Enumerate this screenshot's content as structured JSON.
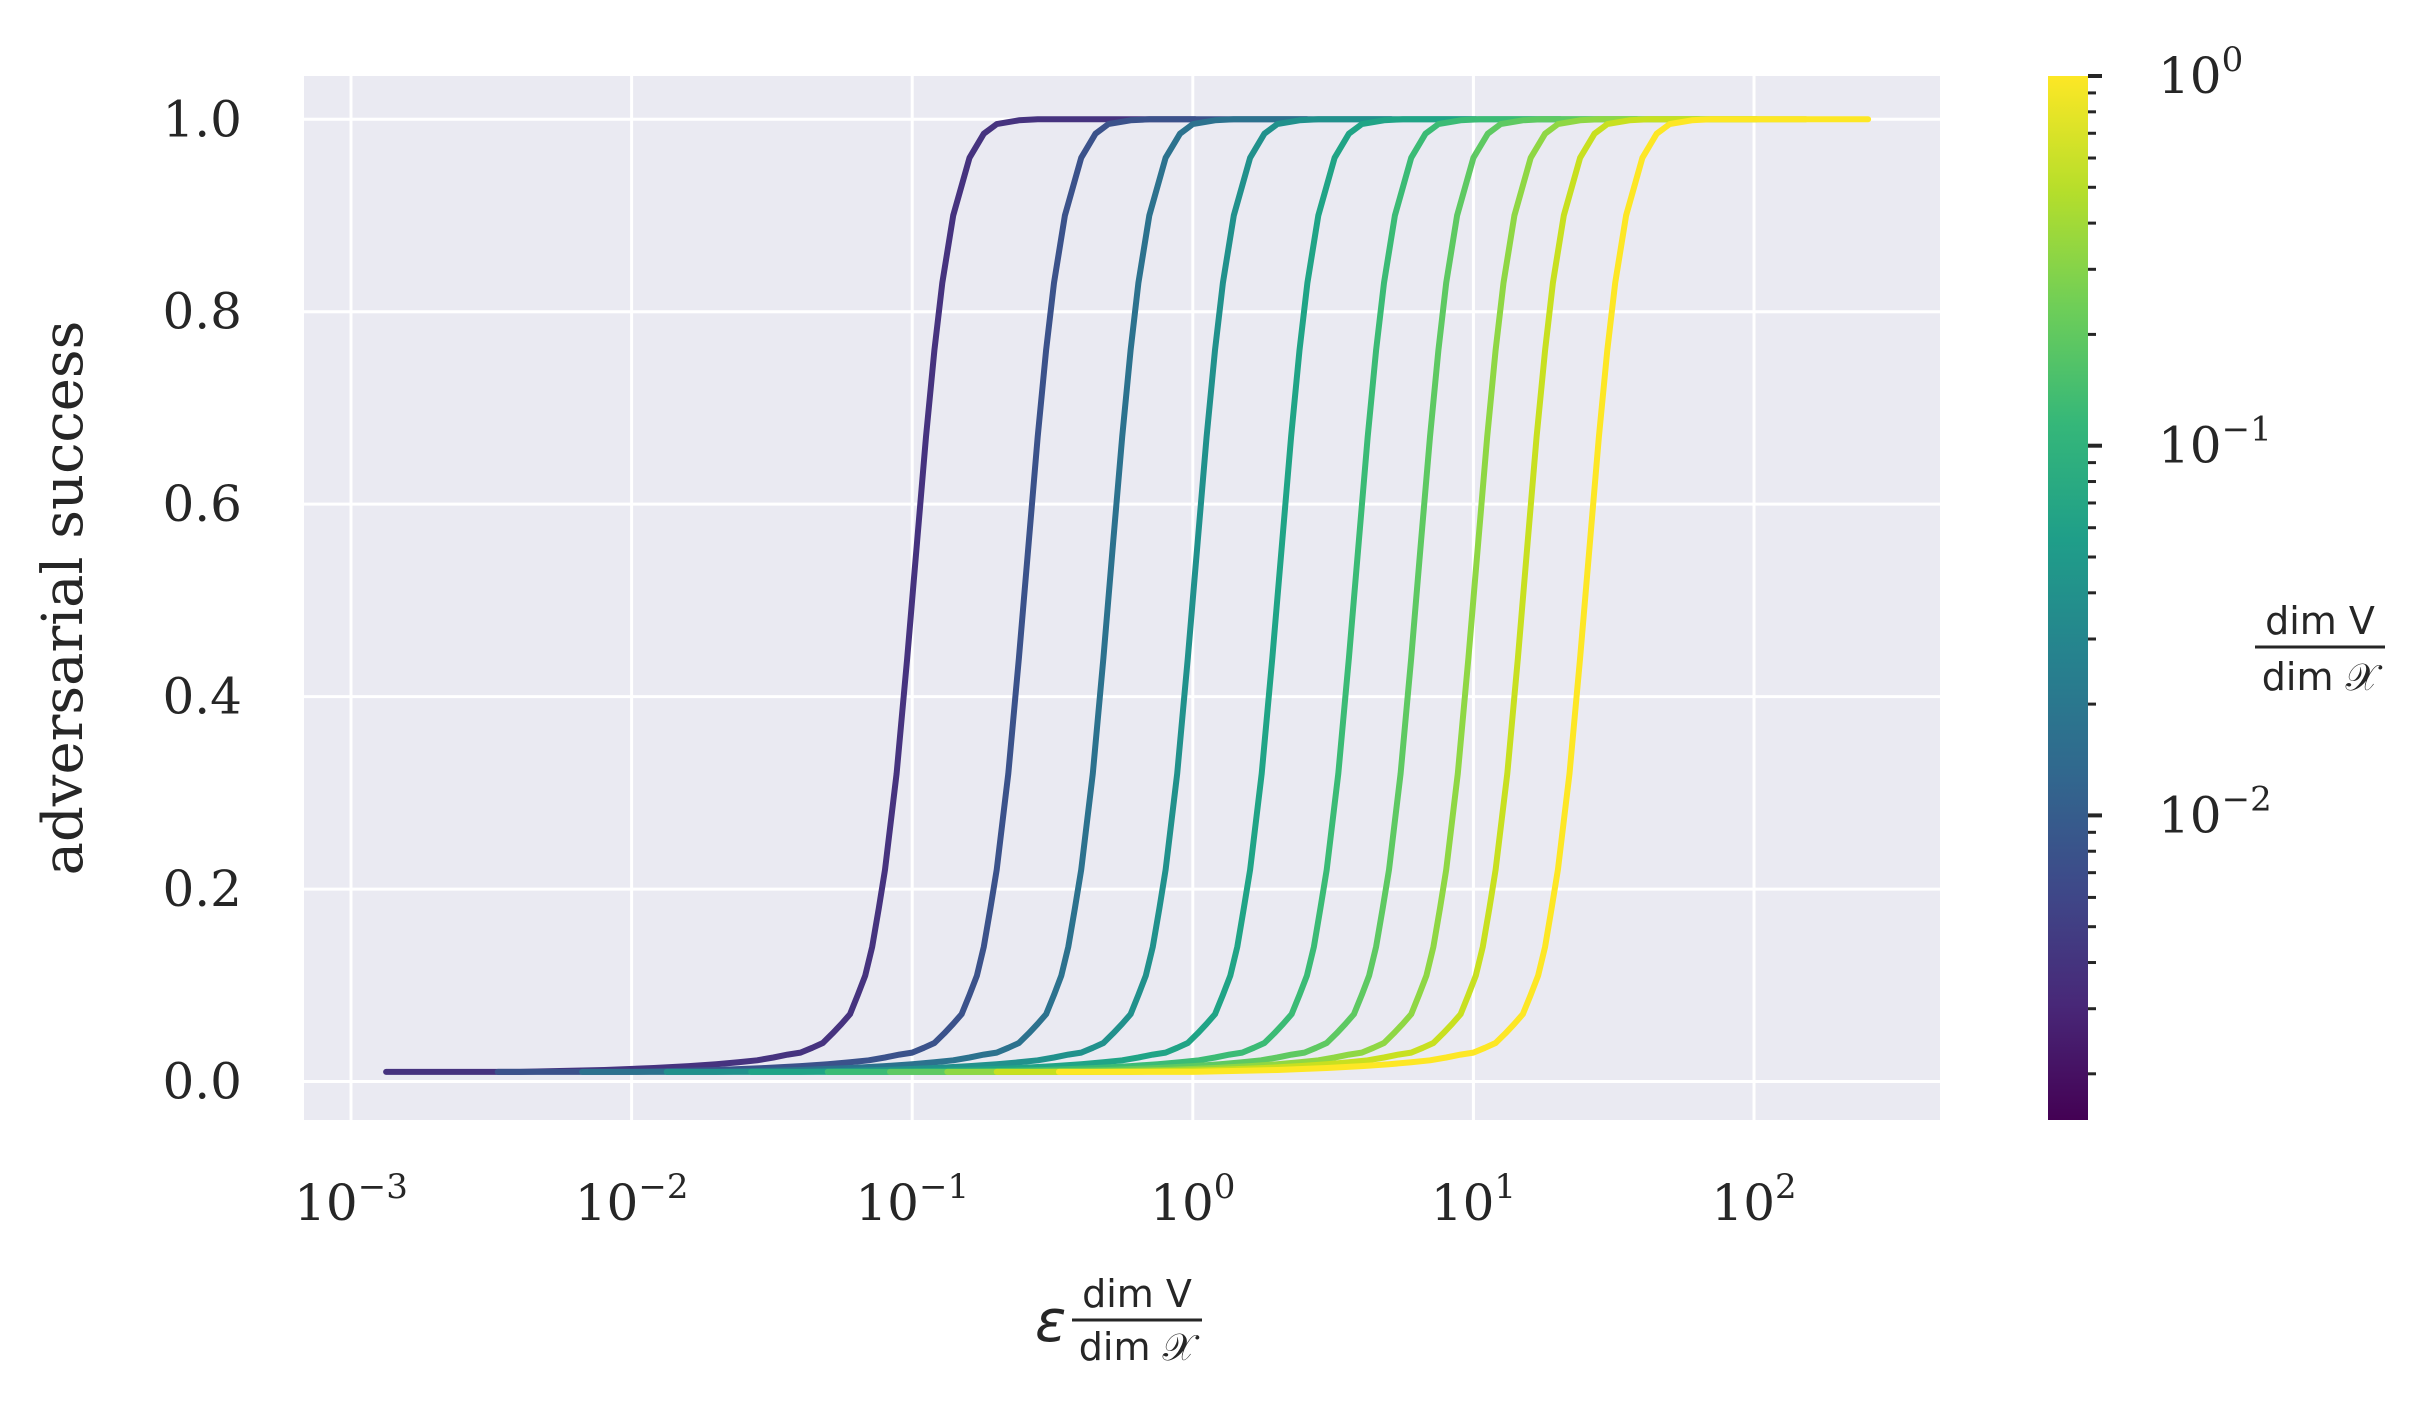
{
  "chart_data": {
    "type": "line",
    "title": "",
    "xscale": "log",
    "xlim": [
      0.00068,
      460
    ],
    "ylim": [
      -0.04,
      1.045
    ],
    "grid": true,
    "background": "#eaeaf2",
    "xlabel": {
      "symbol": "ε",
      "frac_num": "dim V",
      "frac_den": "dim 𝒳"
    },
    "ylabel": "adversarial success",
    "x_ticks": [
      {
        "value": 0.001,
        "base": "10",
        "exp": "−3"
      },
      {
        "value": 0.01,
        "base": "10",
        "exp": "−2"
      },
      {
        "value": 0.1,
        "base": "10",
        "exp": "−1"
      },
      {
        "value": 1,
        "base": "10",
        "exp": "0"
      },
      {
        "value": 10,
        "base": "10",
        "exp": "1"
      },
      {
        "value": 100,
        "base": "10",
        "exp": "2"
      }
    ],
    "y_ticks": [
      {
        "value": 0.0,
        "label": "0.0"
      },
      {
        "value": 0.2,
        "label": "0.2"
      },
      {
        "value": 0.4,
        "label": "0.4"
      },
      {
        "value": 0.6,
        "label": "0.6"
      },
      {
        "value": 0.8,
        "label": "0.8"
      },
      {
        "value": 1.0,
        "label": "1.0"
      }
    ],
    "curve_eps": [
      0.0,
      0.5,
      1.0,
      2.0,
      3.0,
      4.0,
      5.0,
      6.0,
      7.0,
      8.0,
      9.0,
      10.0,
      11.0,
      12.0,
      13.0,
      14.0,
      15.0,
      16.0,
      17.0,
      18.0,
      19.0,
      20.0,
      22.0,
      24.0,
      26.0,
      28.0,
      30.0,
      32.0,
      35.0,
      40.0,
      45.0,
      50.0,
      60.0,
      70.0,
      80.0,
      100.0,
      120.0,
      150.0,
      200.0,
      255.0
    ],
    "curve_success": [
      0.01,
      0.01,
      0.01,
      0.012,
      0.014,
      0.016,
      0.018,
      0.02,
      0.022,
      0.025,
      0.028,
      0.03,
      0.035,
      0.04,
      0.05,
      0.06,
      0.07,
      0.09,
      0.11,
      0.14,
      0.18,
      0.22,
      0.32,
      0.44,
      0.56,
      0.67,
      0.76,
      0.83,
      0.9,
      0.96,
      0.985,
      0.995,
      0.999,
      1.0,
      1.0,
      1.0,
      1.0,
      1.0,
      1.0,
      1.0
    ],
    "series": [
      {
        "ratio": 0.004,
        "color": "#46337f"
      },
      {
        "ratio": 0.01,
        "color": "#3b528b"
      },
      {
        "ratio": 0.02,
        "color": "#2c728e"
      },
      {
        "ratio": 0.04,
        "color": "#21918c"
      },
      {
        "ratio": 0.08,
        "color": "#20a486"
      },
      {
        "ratio": 0.15,
        "color": "#3bbb75"
      },
      {
        "ratio": 0.25,
        "color": "#5ec962"
      },
      {
        "ratio": 0.4,
        "color": "#8fd744"
      },
      {
        "ratio": 0.6,
        "color": "#c8e020"
      },
      {
        "ratio": 1.0,
        "color": "#fde725"
      }
    ],
    "colorbar": {
      "scale": "log",
      "range": [
        0.0015,
        1.0
      ],
      "colormap": "viridis",
      "colors": [
        "#440154",
        "#482878",
        "#3e4989",
        "#31688e",
        "#26828e",
        "#1f9e89",
        "#35b779",
        "#6ece58",
        "#b5de2b",
        "#fde725"
      ],
      "ticks": [
        {
          "value": 1.0,
          "base": "10",
          "exp": "0"
        },
        {
          "value": 0.1,
          "base": "10",
          "exp": "−1"
        },
        {
          "value": 0.01,
          "base": "10",
          "exp": "−2"
        }
      ],
      "label": {
        "frac_num": "dim V",
        "frac_den": "dim 𝒳"
      }
    }
  }
}
